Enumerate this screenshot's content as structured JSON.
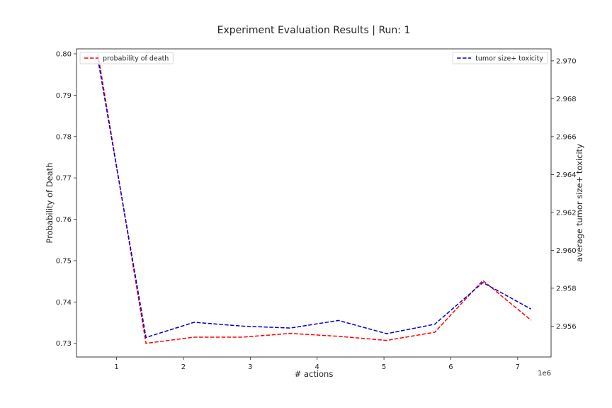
{
  "chart_data": {
    "type": "line",
    "title": "Experiment Evaluation Results | Run: 1",
    "xlabel": "# actions",
    "x_offset_label": "1e6",
    "ylabel_left": "Probability of Death",
    "ylabel_right": "average tumor size+ toxicity",
    "xlim": [
      0.4,
      7.5
    ],
    "ylim_left": [
      0.7267,
      0.8012
    ],
    "ylim_right": [
      2.95437,
      2.97063
    ],
    "x_ticks": [
      1,
      2,
      3,
      4,
      5,
      6,
      7
    ],
    "y_ticks_left": [
      0.73,
      0.74,
      0.75,
      0.76,
      0.77,
      0.78,
      0.79,
      0.8
    ],
    "y_ticks_right": [
      2.956,
      2.958,
      2.96,
      2.962,
      2.964,
      2.966,
      2.968,
      2.97
    ],
    "y_tick_labels_left": [
      "0.73",
      "0.74",
      "0.75",
      "0.76",
      "0.77",
      "0.78",
      "0.79",
      "0.80"
    ],
    "y_tick_labels_right": [
      "2.956",
      "2.958",
      "2.960",
      "2.962",
      "2.964",
      "2.966",
      "2.968",
      "2.970"
    ],
    "grid": false,
    "series": [
      {
        "name": "probability of death",
        "axis": "left",
        "color": "#ff0000",
        "style": "dashed",
        "legend_position": "top-left",
        "x": [
          0.72,
          1.44,
          2.16,
          2.88,
          3.6,
          4.32,
          5.04,
          5.76,
          6.48,
          7.2
        ],
        "y": [
          0.8,
          0.73,
          0.7315,
          0.7315,
          0.7324,
          0.7317,
          0.7307,
          0.7327,
          0.7452,
          0.7356
        ]
      },
      {
        "name": "tumor size+ toxicity",
        "axis": "right",
        "color": "#0000cc",
        "style": "dashed",
        "legend_position": "top-right",
        "x": [
          0.72,
          1.44,
          2.16,
          2.88,
          3.6,
          4.32,
          5.04,
          5.76,
          6.48,
          7.2
        ],
        "y": [
          2.9701,
          2.9554,
          2.9562,
          2.956,
          2.9559,
          2.9563,
          2.9556,
          2.9561,
          2.9583,
          2.9569
        ]
      }
    ]
  }
}
